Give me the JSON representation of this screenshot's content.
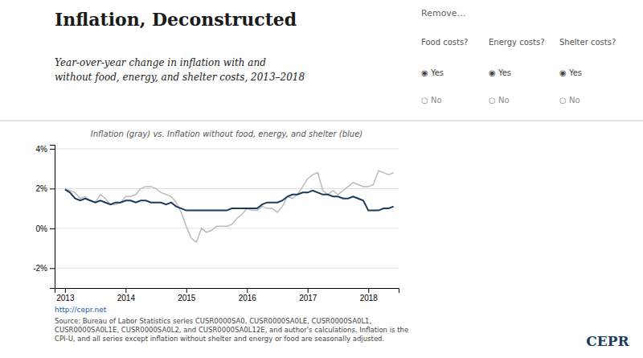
{
  "chart_data": {
    "type": "line",
    "title": "Inflation, Deconstructed",
    "subtitle": "Year-over-year change in inflation with and\nwithout food, energy, and shelter costs, 2013–2018",
    "annotations": [
      "Inflation (gray) vs. Inflation without food, energy, and shelter (blue)",
      "Remove...",
      "Food costs?",
      "Energy costs?",
      "Shelter costs?",
      "◉ Yes",
      "○ No",
      "http://cepr.net",
      "Source: Bureau of Labor Statistics series CUSR0000SA0, CUSR0000SA0LE, CUSR0000SA0L1,\nCUSR0000SA0L1E, CUSR0000SA0L2, and CUSR0000SA0L12E, and author's calculations. Inflation is the\nCPI-U, and all series except inflation without shelter and energy or food are seasonally adjusted.",
      "CEPR"
    ],
    "x": [
      2013.0,
      2013.083,
      2013.167,
      2013.25,
      2013.333,
      2013.417,
      2013.5,
      2013.583,
      2013.667,
      2013.75,
      2013.833,
      2013.917,
      2014.0,
      2014.083,
      2014.167,
      2014.25,
      2014.333,
      2014.417,
      2014.5,
      2014.583,
      2014.667,
      2014.75,
      2014.833,
      2014.917,
      2015.0,
      2015.083,
      2015.167,
      2015.25,
      2015.333,
      2015.417,
      2015.5,
      2015.583,
      2015.667,
      2015.75,
      2015.833,
      2015.917,
      2016.0,
      2016.083,
      2016.167,
      2016.25,
      2016.333,
      2016.417,
      2016.5,
      2016.583,
      2016.667,
      2016.75,
      2016.833,
      2016.917,
      2017.0,
      2017.083,
      2017.167,
      2017.25,
      2017.333,
      2017.417,
      2017.5,
      2017.583,
      2017.667,
      2017.75,
      2017.833,
      2017.917,
      2018.0,
      2018.083,
      2018.167,
      2018.25,
      2018.333,
      2018.417
    ],
    "series": [
      {
        "color": "#bbbbbb",
        "values": [
          0.0196,
          0.019,
          0.018,
          0.015,
          0.016,
          0.014,
          0.013,
          0.017,
          0.015,
          0.012,
          0.012,
          0.013,
          0.016,
          0.016,
          0.017,
          0.02,
          0.021,
          0.021,
          0.02,
          0.018,
          0.017,
          0.016,
          0.013,
          0.008,
          0.001,
          -0.005,
          -0.007,
          0.0,
          -0.002,
          -0.001,
          0.001,
          0.001,
          0.001,
          0.002,
          0.005,
          0.007,
          0.01,
          0.009,
          0.009,
          0.011,
          0.01,
          0.01,
          0.008,
          0.011,
          0.016,
          0.015,
          0.017,
          0.021,
          0.025,
          0.027,
          0.028,
          0.019,
          0.017,
          0.019,
          0.017,
          0.019,
          0.021,
          0.023,
          0.022,
          0.021,
          0.021,
          0.022,
          0.029,
          0.028,
          0.027,
          0.028
        ]
      },
      {
        "color": "#1b3a5c",
        "values": [
          0.0196,
          0.018,
          0.015,
          0.014,
          0.015,
          0.014,
          0.013,
          0.014,
          0.013,
          0.012,
          0.013,
          0.013,
          0.014,
          0.014,
          0.013,
          0.014,
          0.014,
          0.013,
          0.013,
          0.013,
          0.012,
          0.013,
          0.011,
          0.01,
          0.009,
          0.009,
          0.009,
          0.009,
          0.009,
          0.009,
          0.009,
          0.009,
          0.009,
          0.01,
          0.01,
          0.01,
          0.01,
          0.01,
          0.01,
          0.012,
          0.013,
          0.013,
          0.013,
          0.014,
          0.016,
          0.017,
          0.017,
          0.018,
          0.018,
          0.019,
          0.018,
          0.017,
          0.017,
          0.016,
          0.016,
          0.015,
          0.015,
          0.016,
          0.015,
          0.014,
          0.009,
          0.009,
          0.009,
          0.01,
          0.01,
          0.011
        ]
      }
    ],
    "xlim": [
      2012.83,
      2018.5
    ],
    "xticks": [
      2013,
      2014,
      2015,
      2016,
      2017,
      2018
    ],
    "ylim": [
      -0.03,
      0.042
    ],
    "yticks": [
      {
        "value": -0.02,
        "label": "-2%"
      },
      {
        "value": 0.0,
        "label": "0%"
      },
      {
        "value": 0.02,
        "label": "2%"
      },
      {
        "value": 0.04,
        "label": "4%"
      }
    ],
    "grid": true
  }
}
